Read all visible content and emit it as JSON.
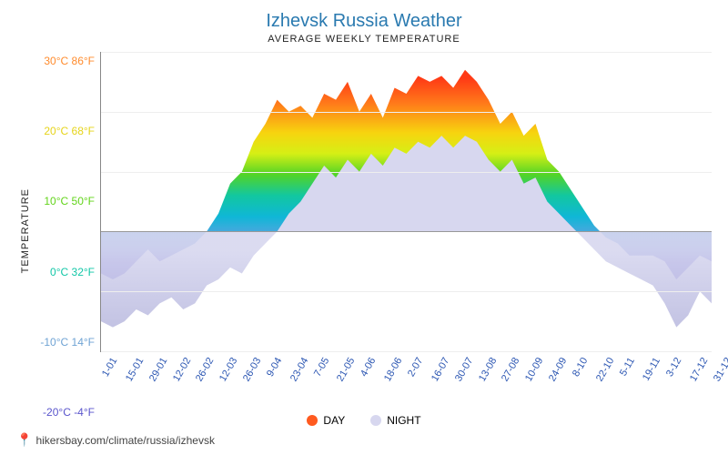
{
  "title": {
    "text": "Izhevsk Russia Weather",
    "color": "#2a7ab0",
    "fontsize": 20
  },
  "subtitle": {
    "text": "AVERAGE WEEKLY TEMPERATURE",
    "color": "#222222",
    "fontsize": 11
  },
  "ylabel": {
    "text": "TEMPERATURE",
    "color": "#222222",
    "fontsize": 11
  },
  "legend": {
    "items": [
      {
        "label": "DAY",
        "color": "#ff5a1f"
      },
      {
        "label": "NIGHT",
        "color": "#d7d7ef"
      }
    ]
  },
  "footer": {
    "text": "hikersbay.com/climate/russia/izhevsk",
    "pin_color": "#ff4d3a"
  },
  "chart": {
    "type": "area",
    "background_color": "#ffffff",
    "grid_color": "#eeeeee",
    "axis_color": "#888888",
    "zero_line_color": "#999999",
    "ylim_c": [
      -20,
      30
    ],
    "yticks": [
      {
        "c": 30,
        "f": 86,
        "color": "#ff8c2e"
      },
      {
        "c": 20,
        "f": 68,
        "color": "#e6d41a"
      },
      {
        "c": 10,
        "f": 50,
        "color": "#62d41a"
      },
      {
        "c": 0,
        "f": 32,
        "color": "#12c7a7"
      },
      {
        "c": -10,
        "f": 14,
        "color": "#6fa3d4"
      },
      {
        "c": -20,
        "f": -4,
        "color": "#5a55cc"
      }
    ],
    "xlabels": [
      "1-01",
      "15-01",
      "29-01",
      "12-02",
      "26-02",
      "12-03",
      "26-03",
      "9-04",
      "23-04",
      "7-05",
      "21-05",
      "4-06",
      "18-06",
      "2-07",
      "16-07",
      "30-07",
      "13-08",
      "27-08",
      "10-09",
      "24-09",
      "8-10",
      "22-10",
      "5-11",
      "19-11",
      "3-12",
      "17-12",
      "31-12"
    ],
    "xlabel_color": "#2a55b2",
    "xlabel_fontsize": 11,
    "day_series_c": [
      -7,
      -8,
      -7,
      -5,
      -3,
      -5,
      -4,
      -3,
      -2,
      0,
      3,
      8,
      10,
      15,
      18,
      22,
      20,
      21,
      19,
      23,
      22,
      25,
      20,
      23,
      19,
      24,
      23,
      26,
      25,
      26,
      24,
      27,
      25,
      22,
      18,
      20,
      16,
      18,
      12,
      10,
      7,
      4,
      1,
      -1,
      -2,
      -4,
      -4,
      -4,
      -5,
      -8,
      -6,
      -4,
      -5
    ],
    "night_series_c": [
      -15,
      -16,
      -15,
      -13,
      -14,
      -12,
      -11,
      -13,
      -12,
      -9,
      -8,
      -6,
      -7,
      -4,
      -2,
      0,
      3,
      5,
      8,
      11,
      9,
      12,
      10,
      13,
      11,
      14,
      13,
      15,
      14,
      16,
      14,
      16,
      15,
      12,
      10,
      12,
      8,
      9,
      5,
      3,
      1,
      -1,
      -3,
      -5,
      -6,
      -7,
      -8,
      -9,
      -12,
      -16,
      -14,
      -10,
      -12
    ],
    "day_gradient_stops": [
      {
        "c": 28,
        "color": "#ff3a15"
      },
      {
        "c": 22,
        "color": "#ff7a1a"
      },
      {
        "c": 15,
        "color": "#f7d40f"
      },
      {
        "c": 10,
        "color": "#d6ef15"
      },
      {
        "c": 5,
        "color": "#52d426"
      },
      {
        "c": 0,
        "color": "#12c7a0"
      },
      {
        "c": -5,
        "color": "#0fb7d6"
      },
      {
        "c": -10,
        "color": "#5aa3e0"
      },
      {
        "c": -16,
        "color": "#5d55d6"
      }
    ],
    "night_top_color": "#d7d7ef",
    "night_below_zero_color": "#bcbce0"
  }
}
